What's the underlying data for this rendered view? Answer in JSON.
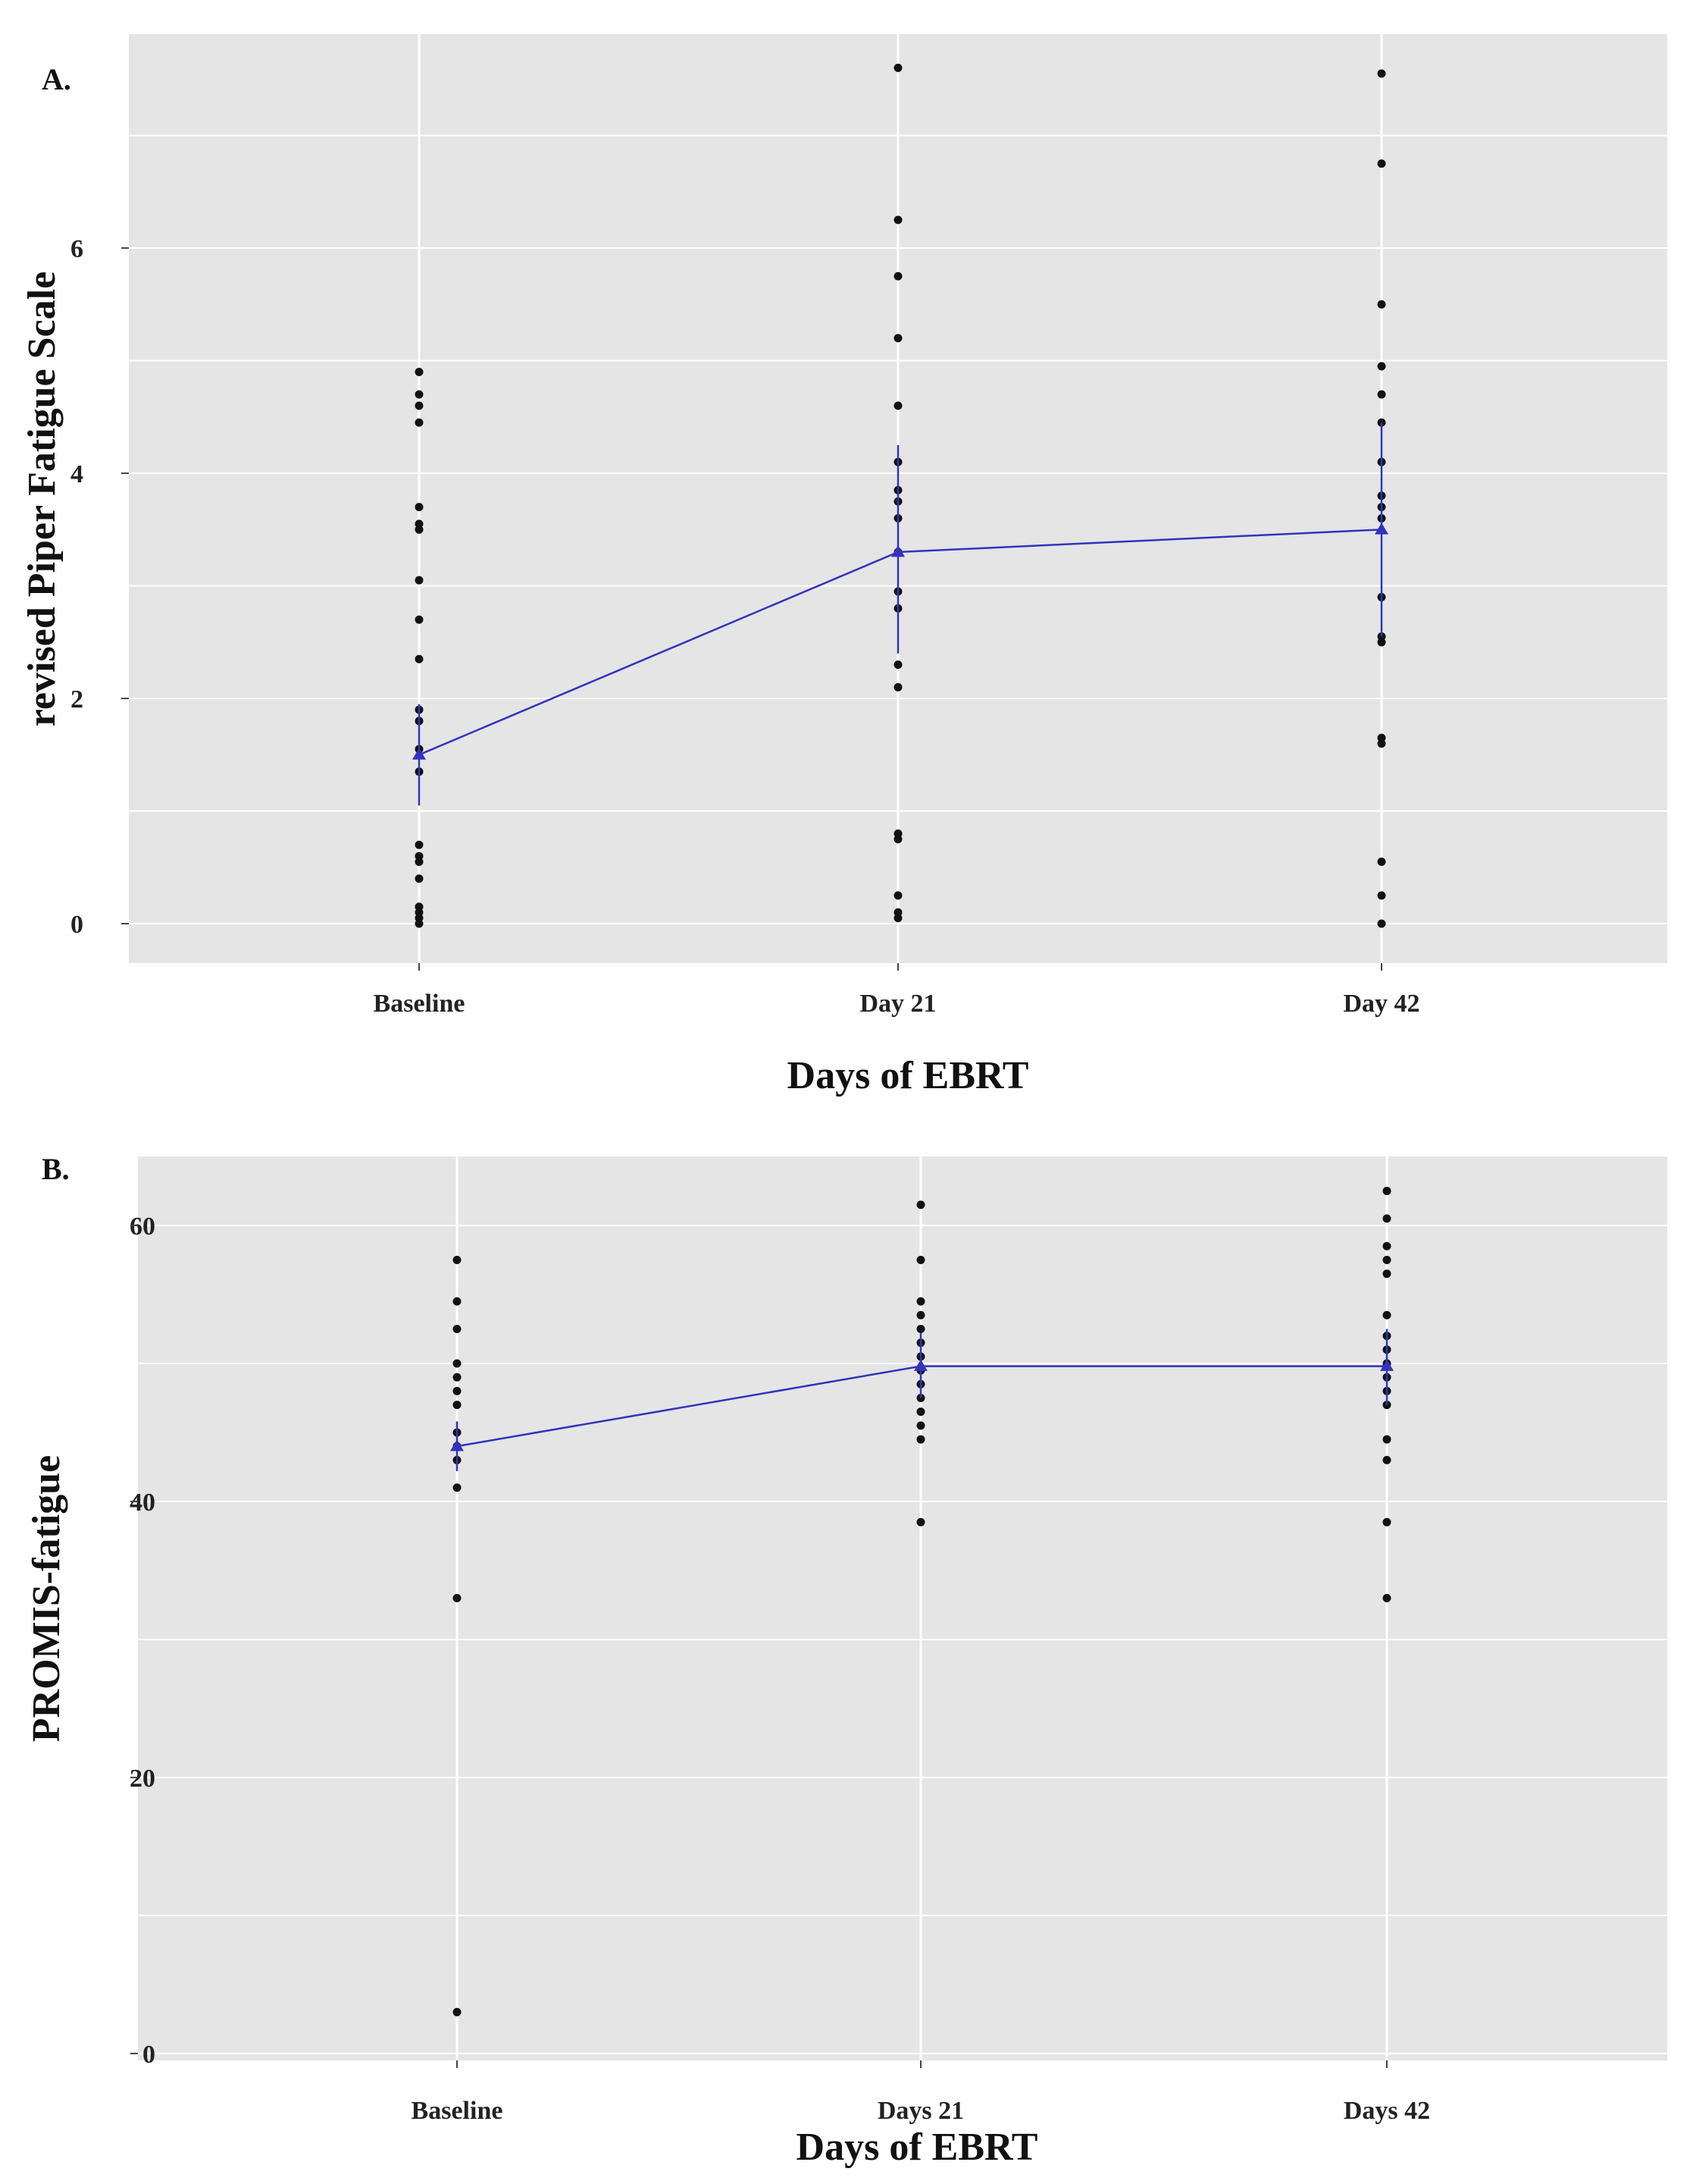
{
  "chart_data": [
    {
      "type": "scatter",
      "panel_label": "A.",
      "title": "",
      "xlabel": "Days of EBRT",
      "ylabel": "revised  Piper Fatigue Scale",
      "categories": [
        "Baseline",
        "Day 21",
        "Day 42"
      ],
      "yticks": [
        0,
        2,
        4,
        6
      ],
      "ylim": [
        -0.35,
        7.9
      ],
      "grid": true,
      "points": [
        [
          0.0,
          0.05,
          0.1,
          0.15,
          0.4,
          0.55,
          0.6,
          0.7,
          1.35,
          1.55,
          1.8,
          1.9,
          2.35,
          2.7,
          3.05,
          3.5,
          3.55,
          3.7,
          4.45,
          4.6,
          4.7,
          4.9
        ],
        [
          0.05,
          0.1,
          0.25,
          0.75,
          0.8,
          2.1,
          2.3,
          2.8,
          2.95,
          3.3,
          3.6,
          3.75,
          3.85,
          4.1,
          4.6,
          5.2,
          5.75,
          6.25,
          7.6
        ],
        [
          0.0,
          0.25,
          0.55,
          1.6,
          1.65,
          2.5,
          2.55,
          2.9,
          3.6,
          3.7,
          3.8,
          4.1,
          4.45,
          4.7,
          4.95,
          5.5,
          6.75,
          7.55
        ]
      ],
      "series": [
        {
          "name": "mean",
          "values": [
            1.5,
            3.3,
            3.5
          ],
          "ci_low": [
            1.05,
            2.4,
            2.55
          ],
          "ci_high": [
            1.95,
            4.25,
            4.45
          ],
          "color": "#3333bb"
        }
      ]
    },
    {
      "type": "scatter",
      "panel_label": "B.",
      "title": "",
      "xlabel": "Days of EBRT",
      "ylabel": "PROMIS-fatigue",
      "categories": [
        "Baseline",
        "Days 21",
        "Days 42"
      ],
      "yticks": [
        0,
        20,
        40,
        60
      ],
      "ylim": [
        -0.5,
        65
      ],
      "grid": true,
      "points": [
        [
          3.0,
          33.0,
          41.0,
          43.0,
          44.0,
          45.0,
          47.0,
          48.0,
          49.0,
          50.0,
          52.5,
          54.5,
          57.5
        ],
        [
          38.5,
          44.5,
          45.5,
          46.5,
          47.5,
          48.5,
          49.5,
          50.5,
          51.5,
          52.5,
          53.5,
          54.5,
          57.5,
          61.5
        ],
        [
          33.0,
          38.5,
          43.0,
          44.5,
          47.0,
          48.0,
          49.0,
          50.0,
          51.0,
          52.0,
          53.5,
          56.5,
          57.5,
          58.5,
          60.5,
          62.5
        ]
      ],
      "series": [
        {
          "name": "mean",
          "values": [
            44.0,
            49.8,
            49.8
          ],
          "ci_low": [
            42.2,
            47.5,
            47.0
          ],
          "ci_high": [
            45.8,
            52.2,
            52.5
          ],
          "color": "#3333bb"
        }
      ]
    }
  ],
  "colors": {
    "panel_bg": "#e5e5e5",
    "grid": "#ffffff",
    "point": "#111111",
    "mean_line": "#3333bb"
  }
}
